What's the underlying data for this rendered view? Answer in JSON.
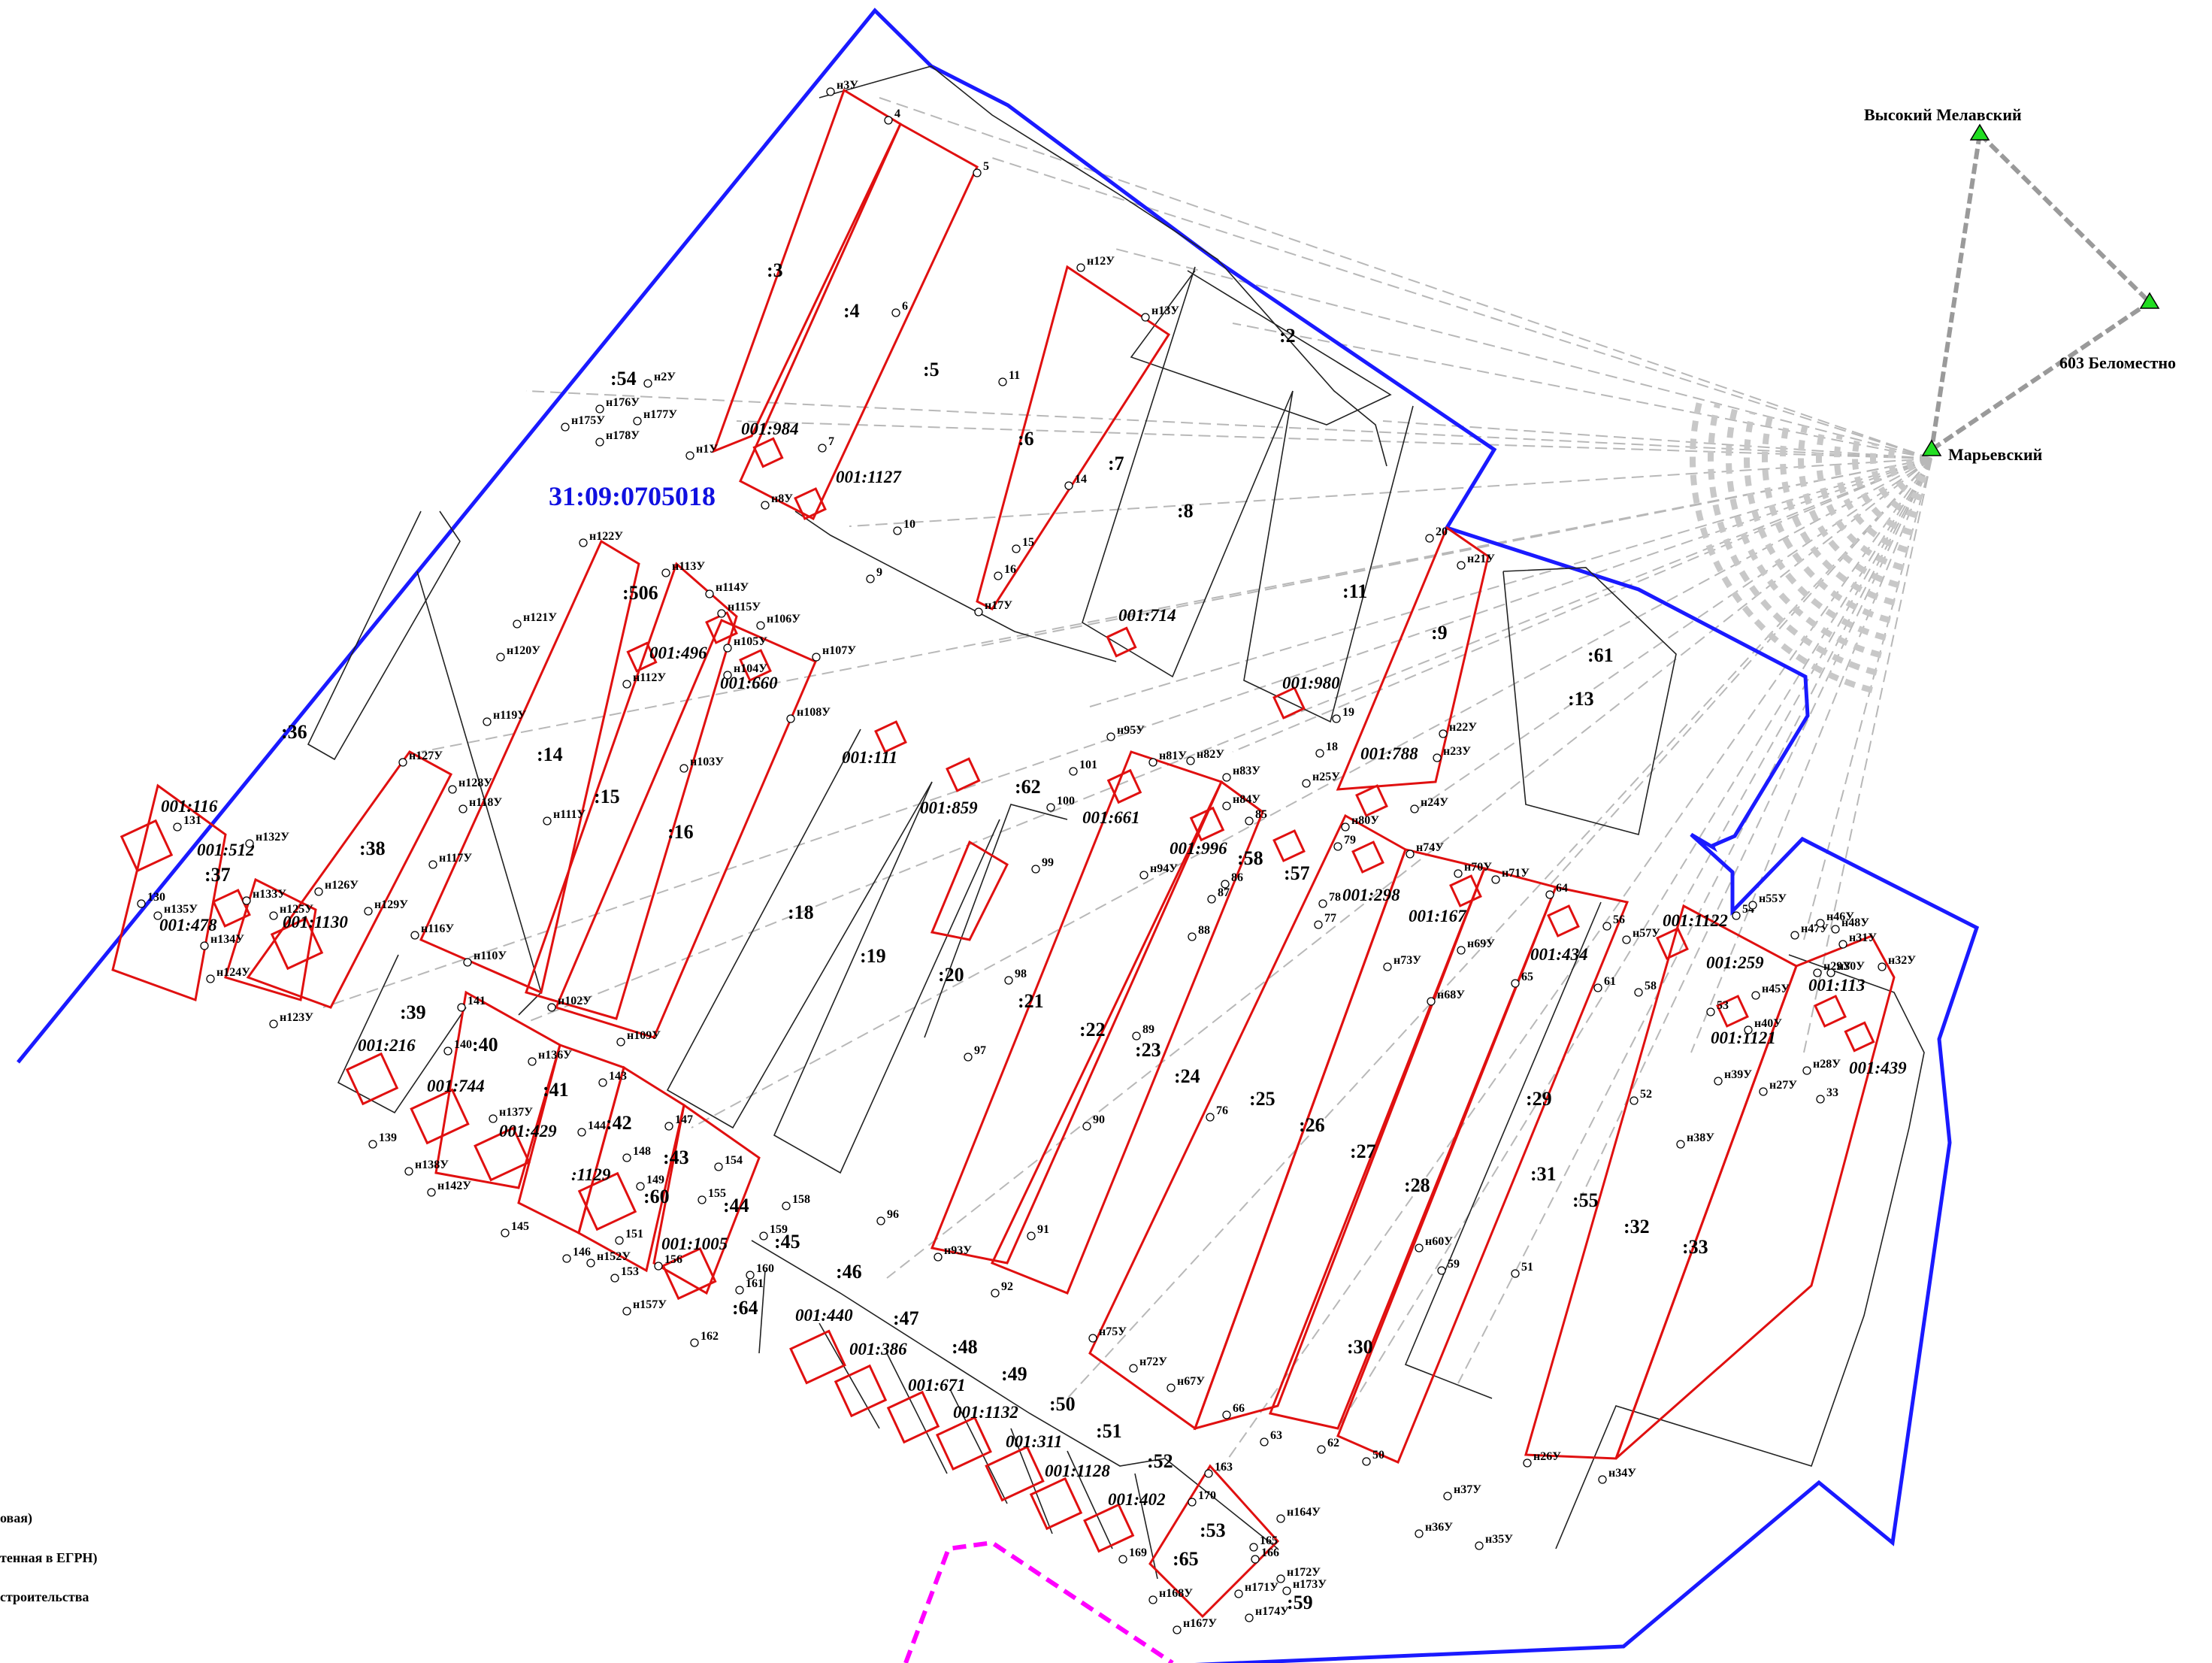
{
  "map": {
    "quarter_label": "31:09:0705018",
    "geodetic_points": [
      {
        "name": "Высокий Мелавский"
      },
      {
        "name": "603 Беломестно"
      },
      {
        "name": "Марьевский"
      }
    ],
    "legend_fragments": [
      "овая)",
      "тенная в ЕГРН)",
      "строительства"
    ],
    "parcel_labels": [
      ":3",
      ":4",
      ":5",
      ":6",
      ":7",
      ":8",
      ":2",
      ":11",
      ":9",
      ":13",
      ":61",
      ":14",
      ":15",
      ":16",
      ":18",
      ":19",
      ":20",
      ":21",
      ":22",
      ":23",
      ":24",
      ":25",
      ":26",
      ":27",
      ":28",
      ":29",
      ":30",
      ":31",
      ":55",
      ":32",
      ":33",
      ":36",
      ":37",
      ":38",
      ":39",
      ":40",
      ":41",
      ":42",
      ":43",
      ":44",
      ":45",
      ":46",
      ":47",
      ":48",
      ":49",
      ":50",
      ":51",
      ":52",
      ":53",
      ":54",
      ":58",
      ":57",
      ":62",
      ":64",
      ":65",
      ":59",
      ":60",
      ":506"
    ],
    "cad_labels": [
      "001:984",
      "001:1127",
      "001:714",
      "001:980",
      "001:788",
      "001:496",
      "001:660",
      "001:111",
      "001:859",
      "001:661",
      "001:996",
      "001:298",
      "001:167",
      "001:434",
      "001:1122",
      "001:259",
      "001:113",
      "001:1121",
      "001:439",
      "001:116",
      "001:512",
      "001:478",
      "001:1130",
      "001:216",
      "001:744",
      "001:429",
      ":1129",
      "001:1005",
      "001:440",
      "001:386",
      "001:671",
      "001:1132",
      "001:311",
      "001:1128",
      "001:402"
    ],
    "point_labels": [
      "н3У",
      "4",
      "5",
      "6",
      "7",
      "н12У",
      "н13У",
      "11",
      "14",
      "15",
      "16",
      "н17У",
      "9",
      "10",
      "н8У",
      "н1У",
      "н2У",
      "н176У",
      "н175У",
      "н177У",
      "н178У",
      "20",
      "н21У",
      "19",
      "18",
      "н25У",
      "н22У",
      "н23У",
      "н24У",
      "н122У",
      "н113У",
      "н114У",
      "н115У",
      "н106У",
      "н105У",
      "н104У",
      "н107У",
      "н108У",
      "н121У",
      "н120У",
      "н119У",
      "н118У",
      "н117У",
      "н116У",
      "н112У",
      "н111У",
      "н110У",
      "н103У",
      "н102У",
      "н109У",
      "н127У",
      "н128У",
      "131",
      "н132У",
      "130",
      "н135У",
      "н133У",
      "н134У",
      "н124У",
      "н125У",
      "н126У",
      "н129У",
      "н123У",
      "н95У",
      "101",
      "100",
      "н81У",
      "н82У",
      "н83У",
      "н84У",
      "85",
      "86",
      "87",
      "88",
      "99",
      "98",
      "97",
      "96",
      "н93У",
      "92",
      "91",
      "90",
      "89",
      "н94У",
      "н80У",
      "79",
      "78",
      "77",
      "н74У",
      "н70У",
      "н71У",
      "64",
      "56",
      "н57У",
      "н69У",
      "н73У",
      "н68У",
      "65",
      "61",
      "58",
      "52",
      "51",
      "59",
      "н60У",
      "н55У",
      "54",
      "н46У",
      "н47У",
      "н48У",
      "н31У",
      "н32У",
      "н29У",
      "н30У",
      "53",
      "н45У",
      "н40У",
      "н39У",
      "н28У",
      "н27У",
      "33",
      "н38У",
      "н26У",
      "н34У",
      "н37У",
      "н36У",
      "н35У",
      "50",
      "62",
      "63",
      "66",
      "н67У",
      "н72У",
      "н75У",
      "76",
      "141",
      "140",
      "н136У",
      "143",
      "144",
      "147",
      "148",
      "149",
      "154",
      "155",
      "158",
      "159",
      "160",
      "161",
      "162",
      "н157У",
      "156",
      "153",
      "н152У",
      "146",
      "151",
      "145",
      "н142У",
      "н138У",
      "139",
      "н137У",
      "163",
      "170",
      "н164У",
      "165",
      "166",
      "н172У",
      "н173У",
      "н171У",
      "н174У",
      "169",
      "н168У",
      "н167У"
    ]
  }
}
